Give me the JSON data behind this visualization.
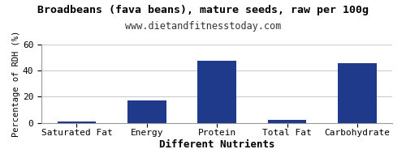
{
  "title": "Broadbeans (fava beans), mature seeds, raw per 100g",
  "subtitle": "www.dietandfitnesstoday.com",
  "xlabel": "Different Nutrients",
  "ylabel": "Percentage of RDH (%)",
  "categories": [
    "Saturated Fat",
    "Energy",
    "Protein",
    "Total Fat",
    "Carbohydrate"
  ],
  "values": [
    1.0,
    17.0,
    47.5,
    2.5,
    45.5
  ],
  "bar_color": "#1F3A8A",
  "ylim": [
    0,
    60
  ],
  "yticks": [
    0,
    20,
    40,
    60
  ],
  "background_color": "#ffffff",
  "grid_color": "#cccccc",
  "border_color": "#999999",
  "title_fontsize": 9.5,
  "subtitle_fontsize": 8.5,
  "xlabel_fontsize": 9,
  "ylabel_fontsize": 7.5,
  "tick_fontsize": 8
}
